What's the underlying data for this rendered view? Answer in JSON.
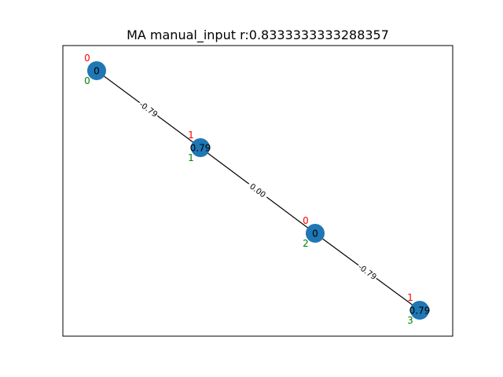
{
  "title": "MA manual_input r:0.8333333333288357",
  "colors": {
    "node": "#1f77b4",
    "edge": "#000000",
    "top_label": "#ff0000",
    "bottom_label": "#008000",
    "frame": "#000000"
  },
  "nodes": [
    {
      "value": "0",
      "top_label": "0",
      "bottom_label": "0"
    },
    {
      "value": "0.79",
      "top_label": "1",
      "bottom_label": "1"
    },
    {
      "value": "0",
      "top_label": "0",
      "bottom_label": "2"
    },
    {
      "value": "0.79",
      "top_label": "1",
      "bottom_label": "3"
    }
  ],
  "edges": [
    {
      "source": 0,
      "target": 1,
      "label": "-0.79"
    },
    {
      "source": 1,
      "target": 2,
      "label": "0.00"
    },
    {
      "source": 2,
      "target": 3,
      "label": "-0.79"
    }
  ]
}
